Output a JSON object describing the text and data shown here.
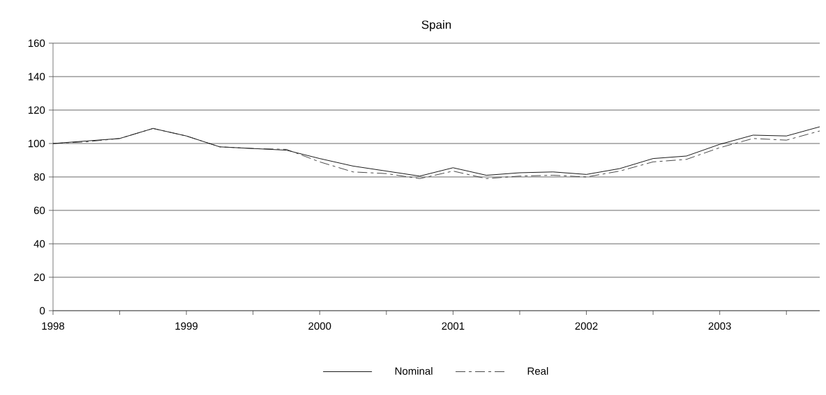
{
  "chart_data": {
    "type": "line",
    "title": "Spain",
    "x": [
      1998,
      1998.25,
      1998.5,
      1998.75,
      1999,
      1999.25,
      1999.5,
      1999.75,
      2000,
      2000.25,
      2000.5,
      2000.75,
      2001,
      2001.25,
      2001.5,
      2001.75,
      2002,
      2002.25,
      2002.5,
      2002.75,
      2003,
      2003.25,
      2003.5,
      2003.75
    ],
    "series": [
      {
        "name": "Nominal",
        "color": "#000000",
        "line_style": "solid",
        "values": [
          100,
          101.5,
          103,
          109,
          104.5,
          98,
          97,
          96,
          91,
          86.5,
          83.5,
          80.5,
          85.5,
          81,
          82.5,
          83,
          81.5,
          85,
          91,
          92.5,
          99.5,
          105,
          104.5,
          110
        ]
      },
      {
        "name": "Real",
        "color": "#333333",
        "line_style": "dashed",
        "values": [
          100,
          101,
          103,
          109,
          104.5,
          98,
          97,
          96.5,
          89,
          83,
          82,
          79,
          83.5,
          79,
          80.5,
          81,
          80,
          83.5,
          89,
          90.5,
          97.5,
          103,
          102,
          107.5
        ]
      }
    ],
    "xlim": [
      1998,
      2003.75
    ],
    "xticks": [
      1998,
      {
        "value": 1998.5,
        "label": null
      },
      1999,
      {
        "value": 1999.5,
        "label": null
      },
      2000,
      {
        "value": 2000.5,
        "label": null
      },
      2001,
      {
        "value": 2001.5,
        "label": null
      },
      2002,
      {
        "value": 2002.5,
        "label": null
      },
      2003,
      {
        "value": 2003.5,
        "label": null
      }
    ],
    "ylim": [
      0,
      160
    ],
    "yticks": [
      0,
      20,
      40,
      60,
      80,
      100,
      120,
      140,
      160
    ],
    "grid": "y",
    "legend": "bottom",
    "marker": "none"
  }
}
